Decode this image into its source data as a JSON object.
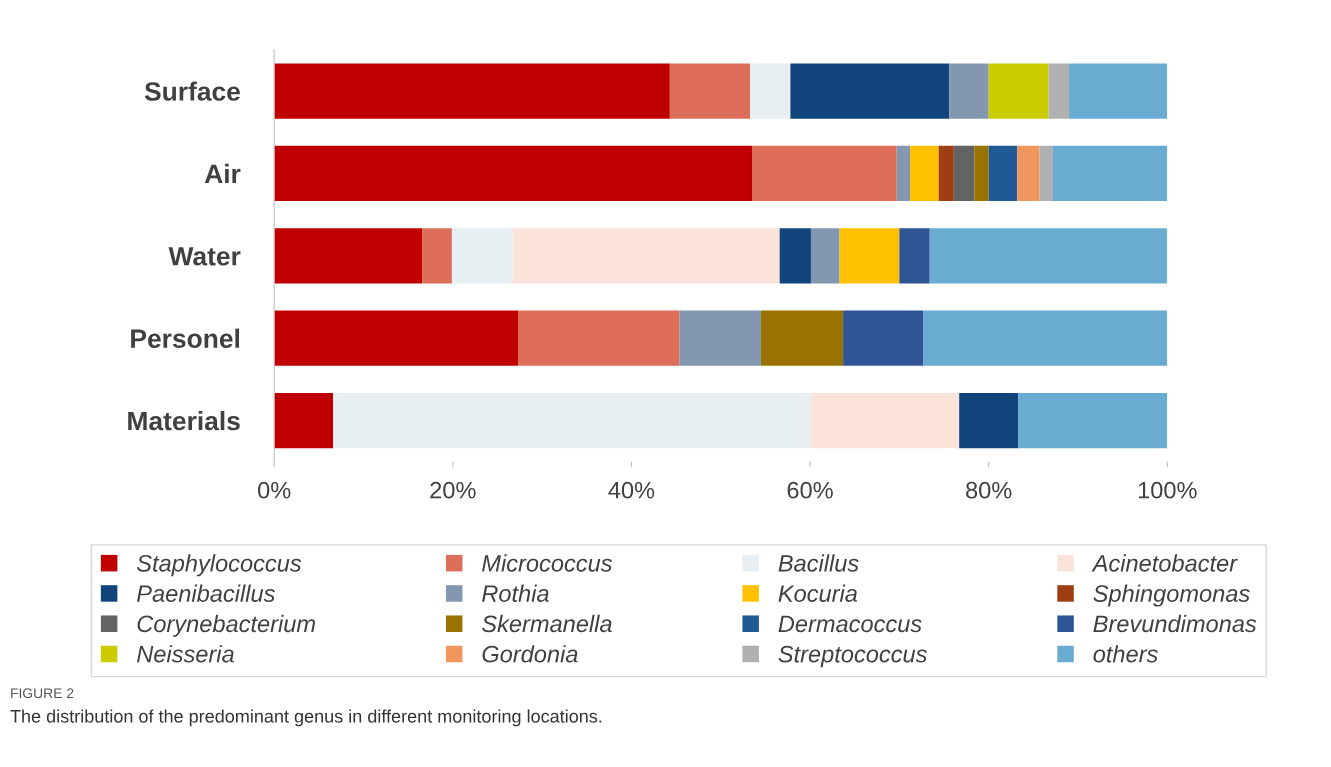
{
  "chart_data": {
    "type": "bar",
    "orientation": "horizontal",
    "stacked": true,
    "categories": [
      "Surface",
      "Air",
      "Water",
      "Personel",
      "Materials"
    ],
    "series": [
      {
        "name": "Staphylococcus",
        "color": "#c00000",
        "values": [
          44.3,
          53.5,
          16.6,
          27.3,
          6.6
        ]
      },
      {
        "name": "Micrococcus",
        "color": "#dd6e5a",
        "values": [
          9.0,
          16.2,
          3.3,
          18.1,
          null
        ]
      },
      {
        "name": "Bacillus",
        "color": "#e8eff3",
        "values": [
          4.5,
          null,
          6.8,
          null,
          53.5
        ]
      },
      {
        "name": "Acinetobacter",
        "color": "#fae3d8",
        "values": [
          null,
          null,
          29.9,
          null,
          16.6
        ]
      },
      {
        "name": "Paenibacillus",
        "color": "#12447c",
        "values": [
          17.8,
          null,
          3.5,
          null,
          6.6
        ]
      },
      {
        "name": "Rothia",
        "color": "#8497b0",
        "values": [
          4.4,
          1.5,
          3.2,
          9.1,
          null
        ]
      },
      {
        "name": "Kocuria",
        "color": "#ffc000",
        "values": [
          null,
          3.2,
          6.7,
          null,
          null
        ]
      },
      {
        "name": "Sphingomonas",
        "color": "#9e3e12",
        "values": [
          null,
          1.7,
          null,
          null,
          null
        ]
      },
      {
        "name": "Corynebacterium",
        "color": "#636363",
        "values": [
          null,
          2.3,
          null,
          null,
          null
        ]
      },
      {
        "name": "Skermanella",
        "color": "#997300",
        "values": [
          null,
          1.6,
          null,
          9.2,
          null
        ]
      },
      {
        "name": "Dermacoccus",
        "color": "#1f5a94",
        "values": [
          null,
          3.2,
          null,
          null,
          null
        ]
      },
      {
        "name": "Brevundimonas",
        "color": "#2f5597",
        "values": [
          null,
          null,
          3.4,
          9.0,
          null
        ]
      },
      {
        "name": "Neisseria",
        "color": "#cccc00",
        "values": [
          6.7,
          null,
          null,
          null,
          null
        ]
      },
      {
        "name": "Gordonia",
        "color": "#f0965c",
        "values": [
          null,
          2.5,
          null,
          null,
          null
        ]
      },
      {
        "name": "Streptococcus",
        "color": "#b0b0b0",
        "values": [
          2.3,
          1.5,
          null,
          null,
          null
        ]
      },
      {
        "name": "others",
        "color": "#6aabd2",
        "values": [
          11.0,
          12.8,
          26.6,
          27.3,
          16.7
        ]
      }
    ],
    "xlim": [
      0,
      100
    ],
    "xticks": [
      {
        "value": 0,
        "label": "0%"
      },
      {
        "value": 20,
        "label": "20%"
      },
      {
        "value": 40,
        "label": "40%"
      },
      {
        "value": 60,
        "label": "60%"
      },
      {
        "value": 80,
        "label": "80%"
      },
      {
        "value": 100,
        "label": "100%"
      }
    ],
    "grid": false,
    "legend": "bottom",
    "annotations": [
      "FIGURE 2",
      "The distribution of the predominant genus in different monitoring locations."
    ]
  }
}
